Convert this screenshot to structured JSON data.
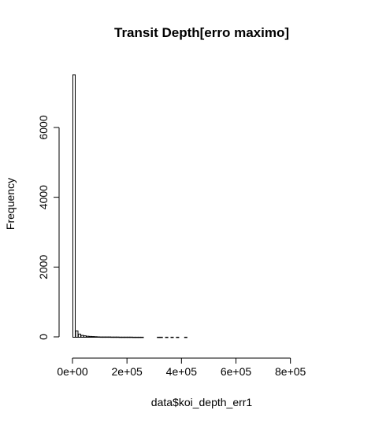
{
  "chart_data": {
    "type": "bar",
    "title": "Transit Depth[erro maximo]",
    "xlabel": "data$koi_depth_err1",
    "ylabel": "Frequency",
    "x_ticks": [
      0,
      200000,
      400000,
      600000,
      800000
    ],
    "x_tick_labels": [
      "0e+00",
      "2e+05",
      "4e+05",
      "6e+05",
      "8e+05"
    ],
    "y_ticks": [
      0,
      2000,
      4000,
      6000
    ],
    "y_tick_labels": [
      "0",
      "2000",
      "4000",
      "6000"
    ],
    "xlim": [
      0,
      960000
    ],
    "ylim": [
      0,
      7600
    ],
    "bin_width": 10000,
    "bins": [
      {
        "x0": 0,
        "x1": 10000,
        "count": 7520
      },
      {
        "x0": 10000,
        "x1": 20000,
        "count": 180
      },
      {
        "x0": 20000,
        "x1": 30000,
        "count": 90
      },
      {
        "x0": 30000,
        "x1": 40000,
        "count": 55
      },
      {
        "x0": 40000,
        "x1": 50000,
        "count": 40
      },
      {
        "x0": 50000,
        "x1": 60000,
        "count": 30
      },
      {
        "x0": 60000,
        "x1": 70000,
        "count": 25
      },
      {
        "x0": 70000,
        "x1": 80000,
        "count": 20
      },
      {
        "x0": 80000,
        "x1": 90000,
        "count": 15
      },
      {
        "x0": 90000,
        "x1": 100000,
        "count": 12
      },
      {
        "x0": 100000,
        "x1": 110000,
        "count": 10
      },
      {
        "x0": 110000,
        "x1": 120000,
        "count": 10
      },
      {
        "x0": 120000,
        "x1": 130000,
        "count": 8
      },
      {
        "x0": 130000,
        "x1": 140000,
        "count": 8
      },
      {
        "x0": 140000,
        "x1": 150000,
        "count": 7
      },
      {
        "x0": 150000,
        "x1": 160000,
        "count": 6
      },
      {
        "x0": 160000,
        "x1": 170000,
        "count": 6
      },
      {
        "x0": 170000,
        "x1": 180000,
        "count": 5
      },
      {
        "x0": 180000,
        "x1": 190000,
        "count": 5
      },
      {
        "x0": 190000,
        "x1": 200000,
        "count": 4
      },
      {
        "x0": 200000,
        "x1": 210000,
        "count": 4
      },
      {
        "x0": 210000,
        "x1": 220000,
        "count": 4
      },
      {
        "x0": 220000,
        "x1": 230000,
        "count": 3
      },
      {
        "x0": 230000,
        "x1": 240000,
        "count": 3
      },
      {
        "x0": 240000,
        "x1": 250000,
        "count": 3
      },
      {
        "x0": 250000,
        "x1": 260000,
        "count": 2
      },
      {
        "x0": 310000,
        "x1": 320000,
        "count": 2
      },
      {
        "x0": 320000,
        "x1": 330000,
        "count": 2
      },
      {
        "x0": 340000,
        "x1": 350000,
        "count": 2
      },
      {
        "x0": 360000,
        "x1": 370000,
        "count": 2
      },
      {
        "x0": 380000,
        "x1": 390000,
        "count": 2
      },
      {
        "x0": 410000,
        "x1": 420000,
        "count": 2
      }
    ]
  }
}
